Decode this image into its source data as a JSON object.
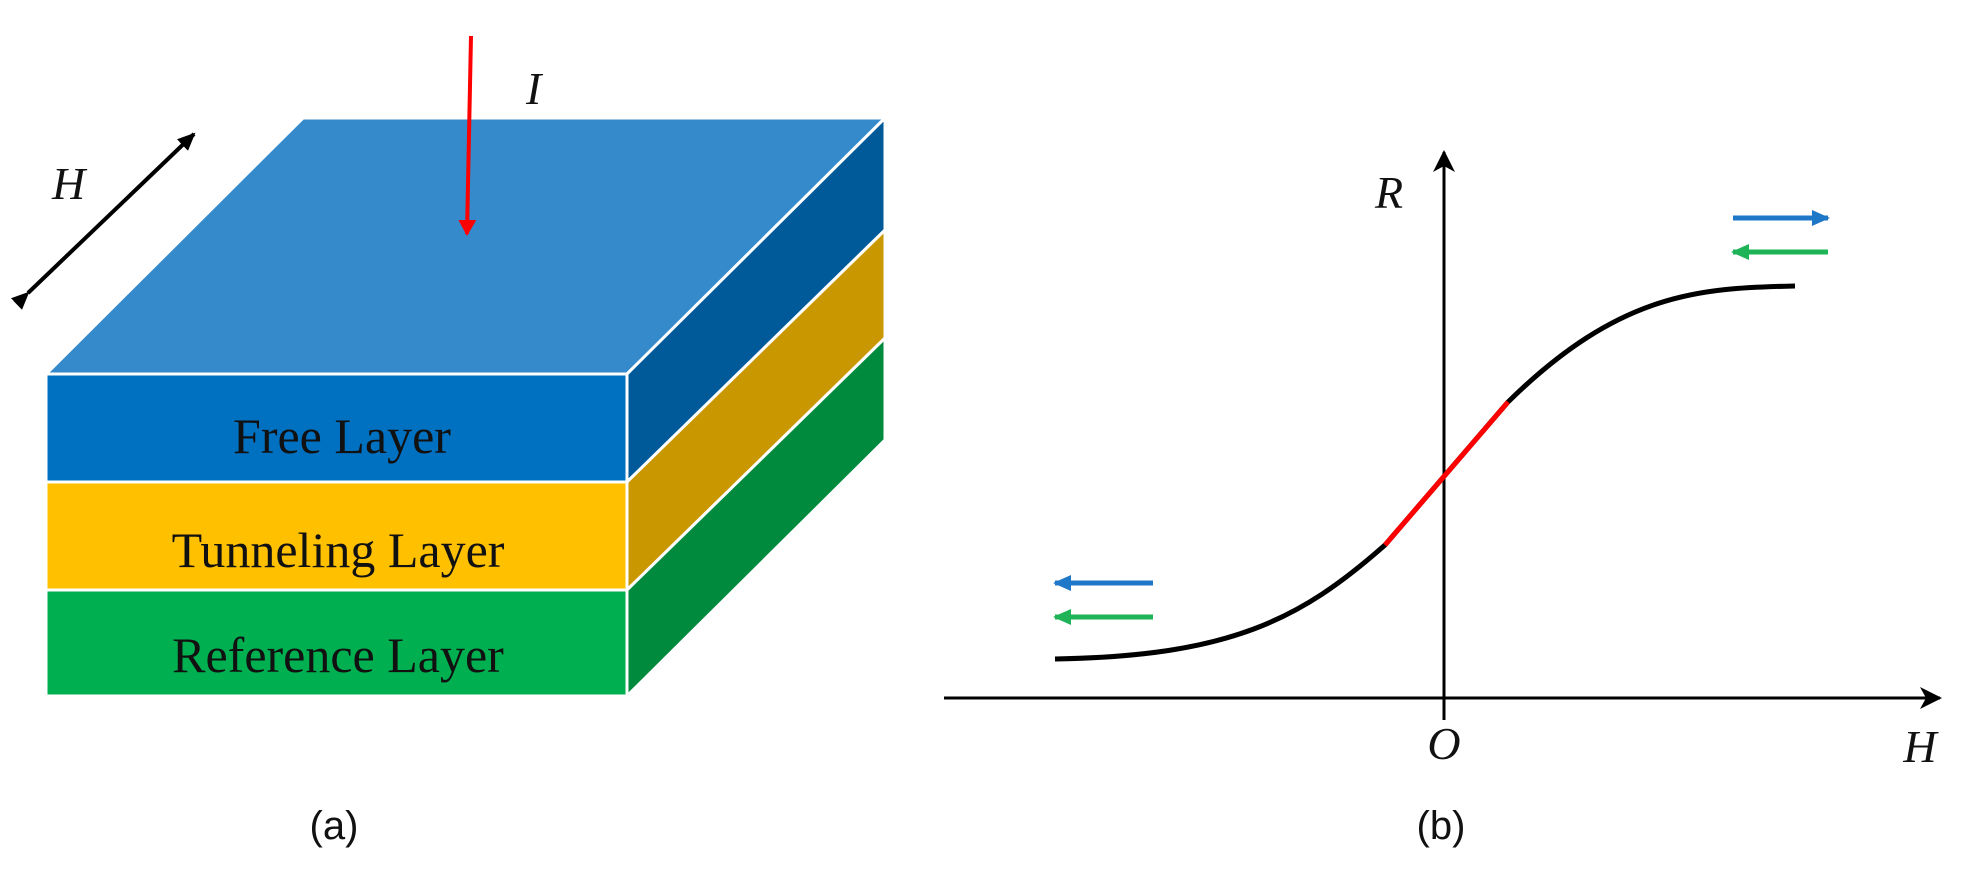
{
  "panel_a": {
    "caption": "(a)",
    "current_label": "I",
    "field_label": "H",
    "layers": [
      {
        "label": "Free Layer",
        "front_color": "#0070C0",
        "top_color": "#348ACB",
        "side_color": "#005A9A"
      },
      {
        "label": "Tunneling Layer",
        "front_color": "#FFC000",
        "side_color": "#C99700"
      },
      {
        "label": "Reference Layer",
        "front_color": "#00B050",
        "side_color": "#008A3E"
      }
    ],
    "current_arrow_color": "#FF0000"
  },
  "panel_b": {
    "caption": "(b)",
    "y_axis_label": "R",
    "x_axis_label": "H",
    "origin_label": "O",
    "curve_color": "#000000",
    "linear_region_color": "#FF0000",
    "free_layer_arrow_color": "#1F77C8",
    "reference_layer_arrow_color": "#1DB356"
  }
}
